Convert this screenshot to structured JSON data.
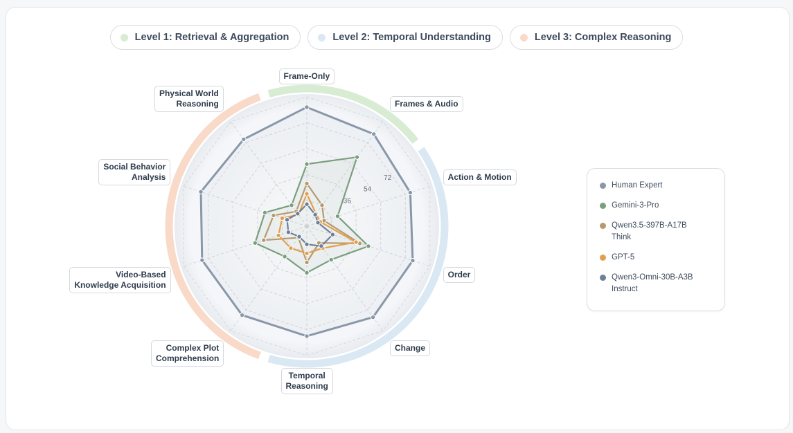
{
  "levels": [
    {
      "label": "Level 1: Retrieval & Aggregation",
      "color": "#d7ecd2"
    },
    {
      "label": "Level 2: Temporal Understanding",
      "color": "#d9e8f3"
    },
    {
      "label": "Level 3: Complex Reasoning",
      "color": "#f9d9c8"
    }
  ],
  "chart_data": {
    "type": "radar",
    "axes": [
      "Frame-Only",
      "Frames & Audio",
      "Action & Motion",
      "Order",
      "Change",
      "Temporal\nReasoning",
      "Complex Plot\nComprehension",
      "Video-Based\nKnowledge Acquisition",
      "Social Behavior\nAnalysis",
      "Physical World\nReasoning"
    ],
    "axis_levels": [
      1,
      1,
      2,
      2,
      2,
      2,
      3,
      3,
      3,
      3
    ],
    "rlim": [
      0,
      100
    ],
    "tick_labels": [
      {
        "value": 36,
        "label": "36"
      },
      {
        "value": 54,
        "label": "54"
      },
      {
        "value": 72,
        "label": "72"
      }
    ],
    "grid": true,
    "legend_position": "right",
    "series": [
      {
        "name": "Human Expert",
        "color": "#8a97a8",
        "fill": true,
        "values": [
          92,
          88,
          84,
          86,
          87,
          85,
          85,
          85,
          86,
          83
        ]
      },
      {
        "name": "Gemini-3-Pro",
        "color": "#7a9e7e",
        "fill": true,
        "values": [
          48,
          66,
          25,
          50,
          32,
          36,
          29,
          42,
          34,
          20
        ]
      },
      {
        "name": "Qwen3.5-397B-A17B\nThink",
        "color": "#b69a6e",
        "fill": false,
        "values": [
          33,
          20,
          14,
          43,
          16,
          28,
          11,
          35,
          27,
          14
        ]
      },
      {
        "name": "GPT-5",
        "color": "#e0a050",
        "fill": false,
        "values": [
          25,
          12,
          11,
          40,
          21,
          21,
          21,
          23,
          20,
          11
        ]
      },
      {
        "name": "Qwen3-Omni-30B-A3B\nInstruct",
        "color": "#6f7f99",
        "fill": false,
        "values": [
          17,
          11,
          9,
          21,
          19,
          14,
          10,
          15,
          16,
          12
        ]
      }
    ]
  }
}
